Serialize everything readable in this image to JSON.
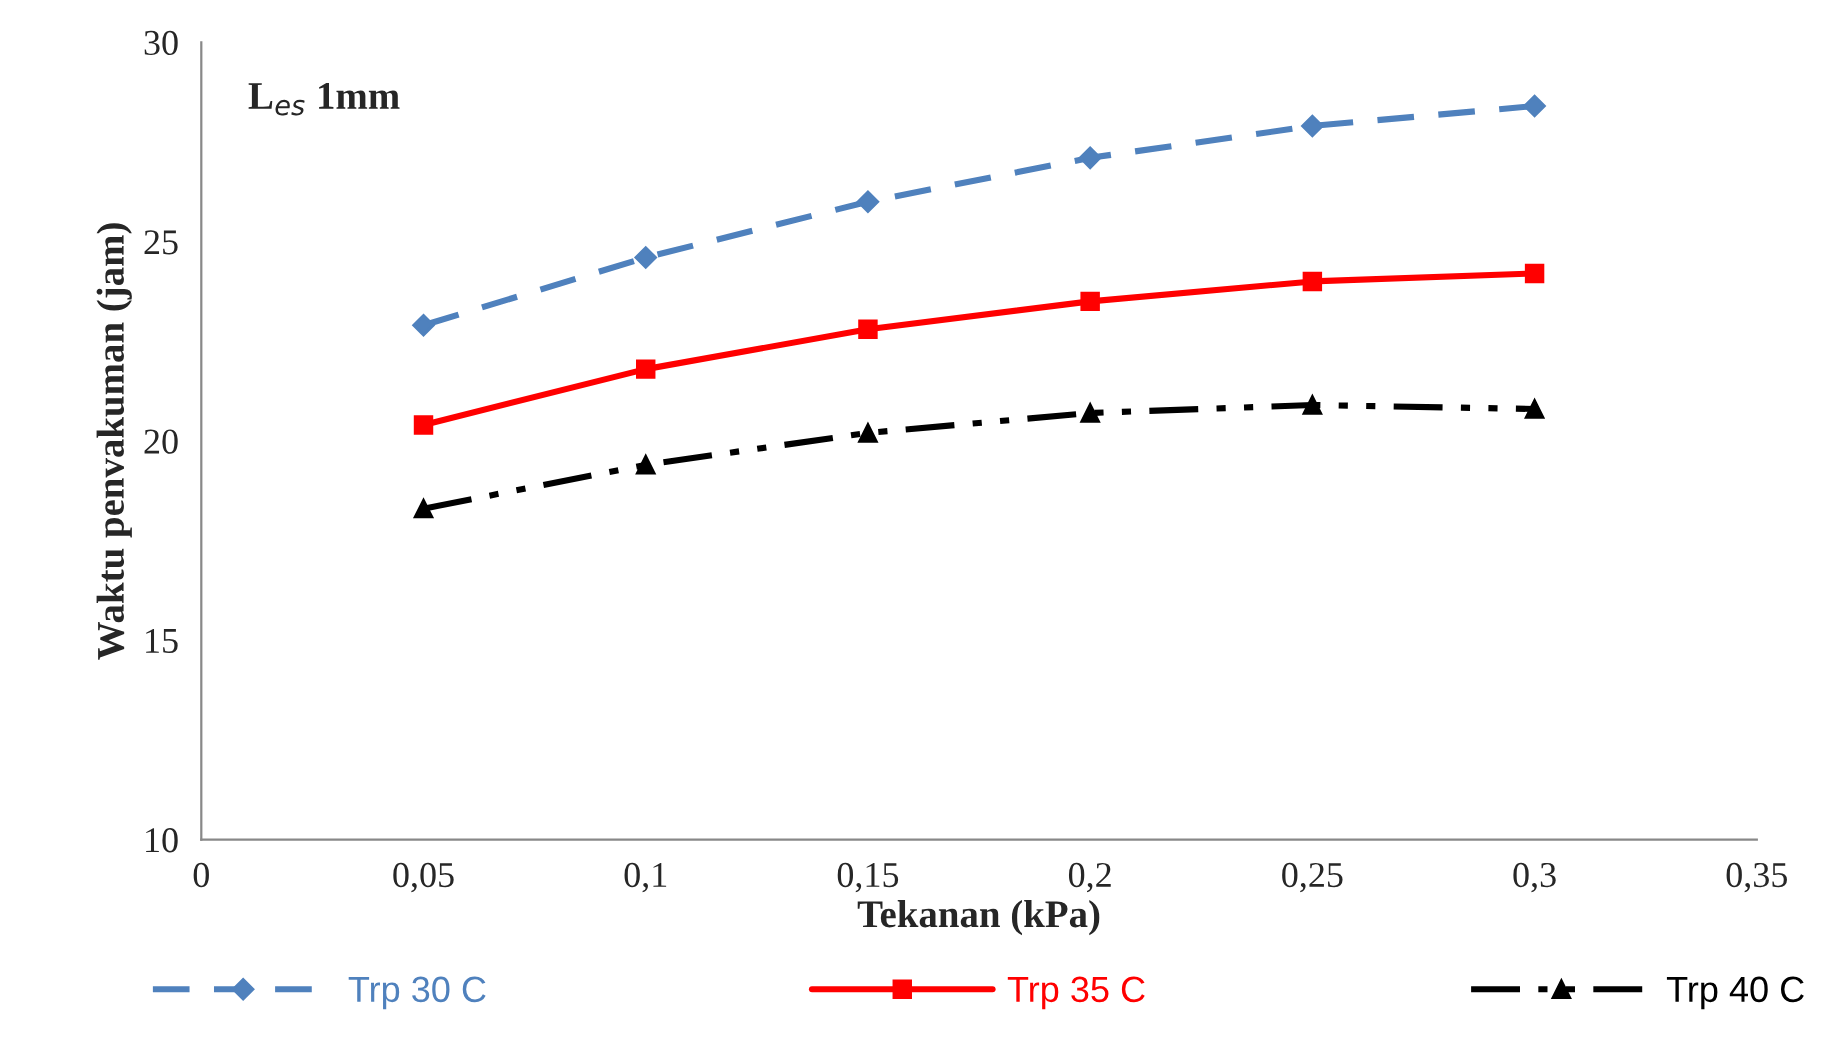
{
  "chart_data": {
    "type": "line",
    "xlabel": "Tekanan (kPa)",
    "ylabel": "Waktu penvakuman (jam)",
    "annotations": [
      {
        "text": "L$_{es}$ 1mm"
      }
    ],
    "x": [
      0.05,
      0.1,
      0.15,
      0.2,
      0.25,
      0.3
    ],
    "series": [
      {
        "name": "Trp 30 C",
        "color": "#4f81bd",
        "marker": "diamond",
        "line_style": "dashed",
        "values": [
          22.9,
          24.6,
          26.0,
          27.1,
          27.9,
          28.4
        ]
      },
      {
        "name": "Trp 35 C",
        "color": "#ff0000",
        "marker": "square",
        "line_style": "solid",
        "values": [
          20.4,
          21.8,
          22.8,
          23.5,
          24.0,
          24.2
        ]
      },
      {
        "name": "Trp 40 C",
        "color": "#000000",
        "marker": "triangle",
        "line_style": "dashdot",
        "values": [
          18.3,
          19.4,
          20.2,
          20.7,
          20.9,
          20.8
        ]
      }
    ],
    "xlim": [
      0,
      0.35
    ],
    "xticks": [
      0,
      {
        "value": 0.05,
        "label": "0,05"
      },
      {
        "value": 0.1,
        "label": "0,1"
      },
      {
        "value": 0.15,
        "label": "0,15"
      },
      {
        "value": 0.2,
        "label": "0,2"
      },
      {
        "value": 0.25,
        "label": "0,25"
      },
      {
        "value": 0.3,
        "label": "0,3"
      },
      {
        "value": 0.35,
        "label": "0,35"
      }
    ],
    "ylim": [
      10,
      30
    ],
    "yticks": [
      10,
      15,
      20,
      25,
      30
    ],
    "grid": false,
    "legend": "bottom"
  }
}
